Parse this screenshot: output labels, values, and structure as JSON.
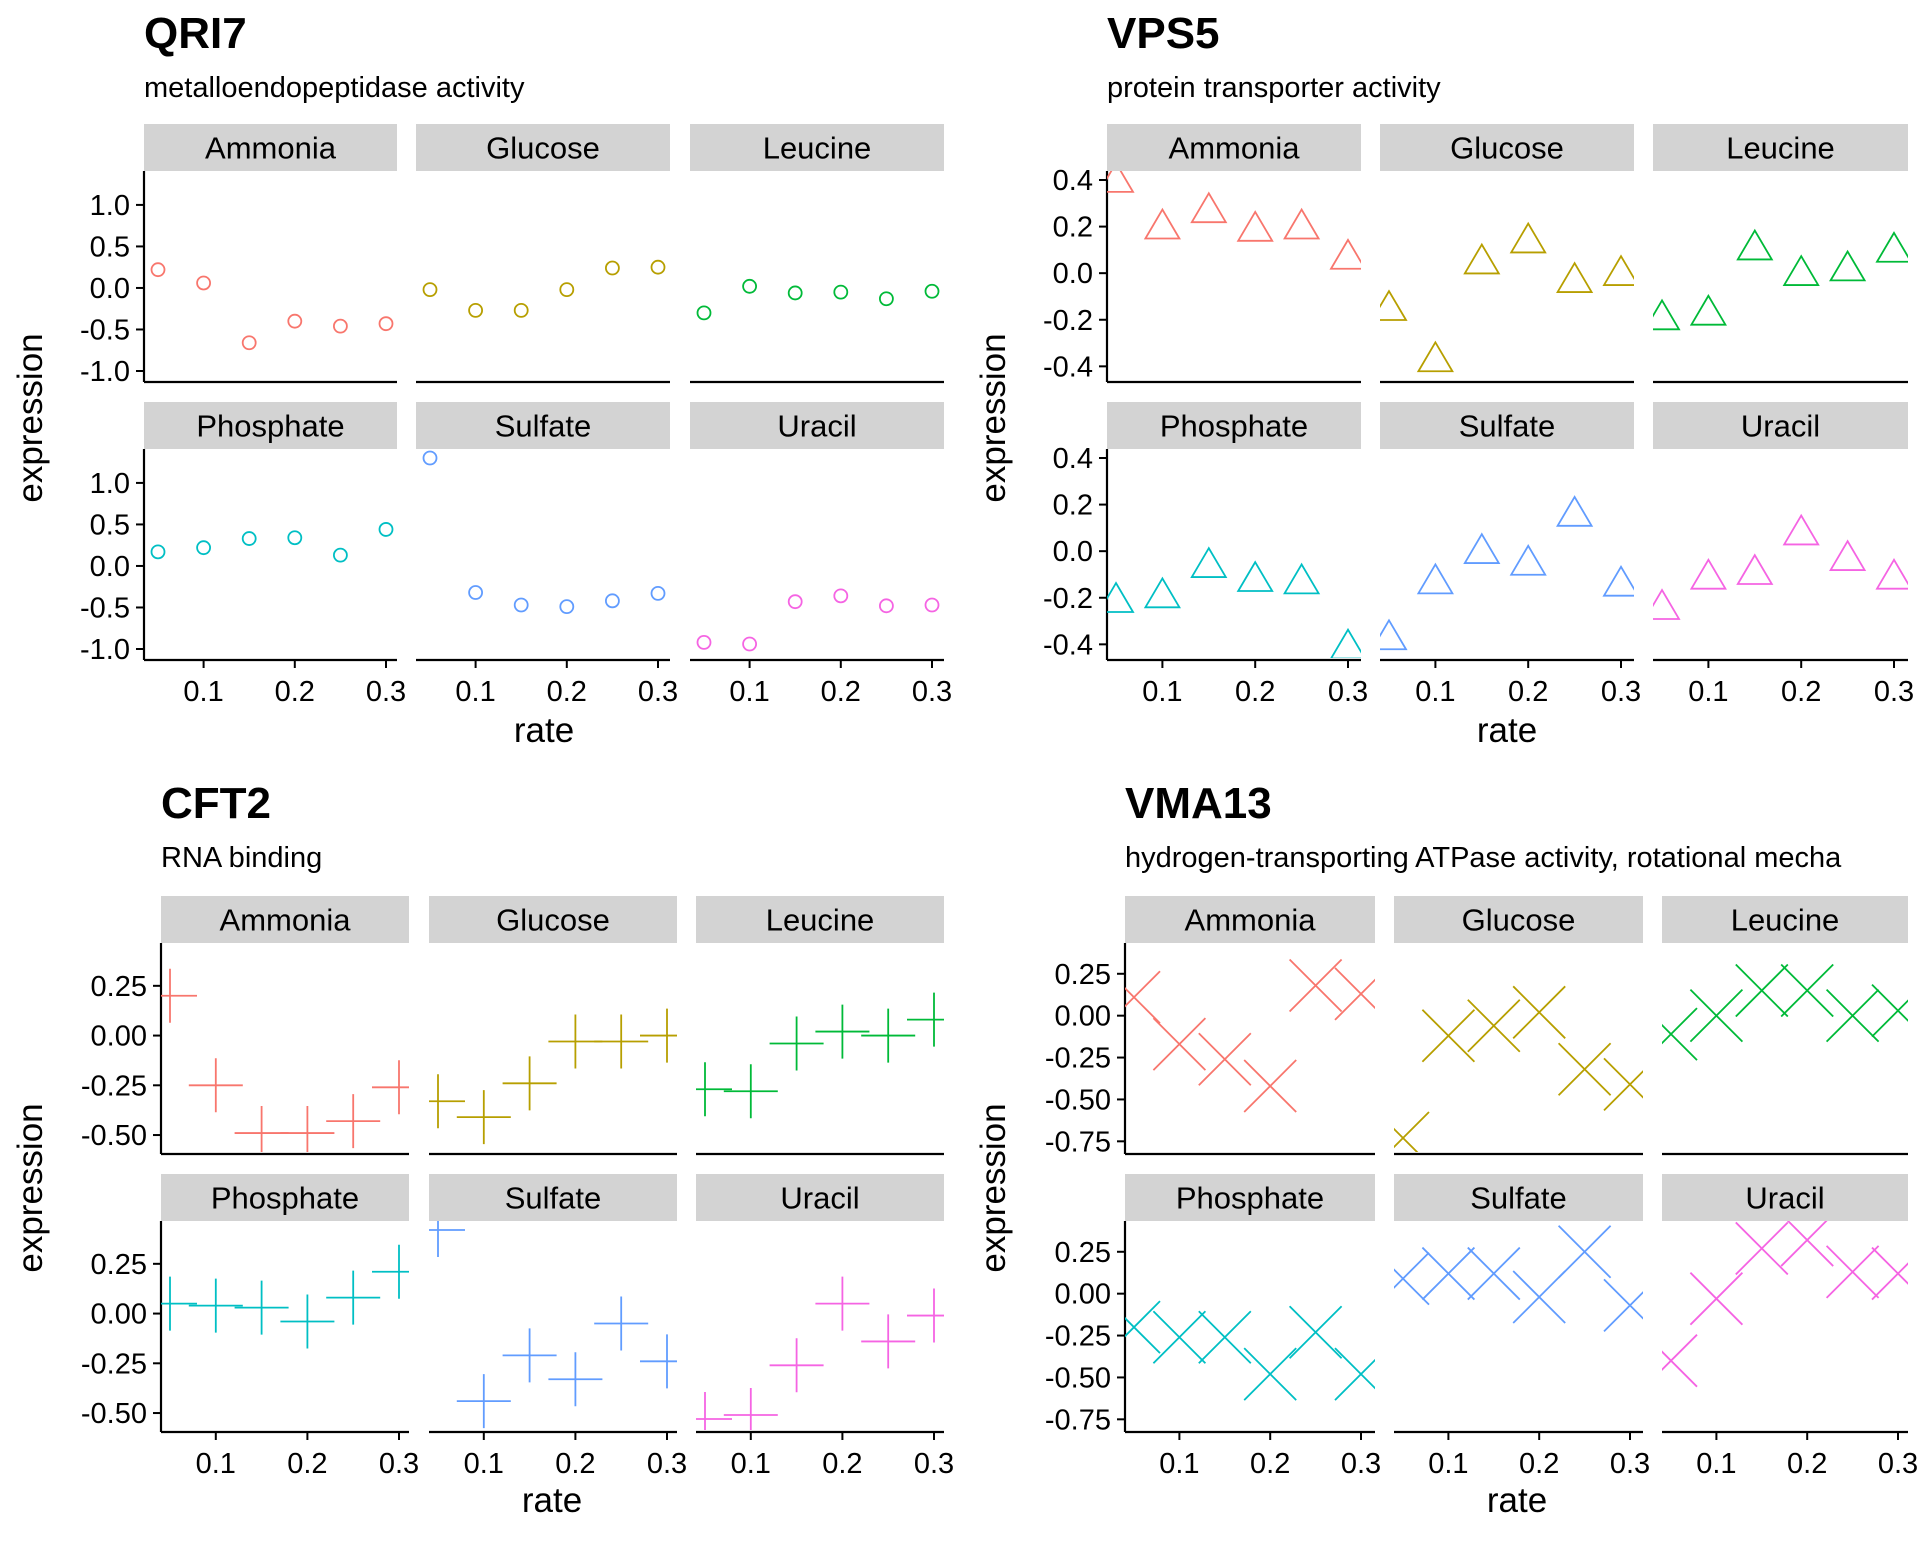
{
  "facets": [
    "Ammonia",
    "Glucose",
    "Leucine",
    "Phosphate",
    "Sulfate",
    "Uracil"
  ],
  "x_ticks": [
    0.1,
    0.2,
    0.3
  ],
  "x_tick_labels": [
    "0.1",
    "0.2",
    "0.3"
  ],
  "rate": [
    0.05,
    0.1,
    0.15,
    0.2,
    0.25,
    0.3
  ],
  "facet_colors": {
    "Ammonia": "#F8766D",
    "Glucose": "#B79F00",
    "Leucine": "#00BA38",
    "Phosphate": "#00BFC4",
    "Sulfate": "#619CFF",
    "Uracil": "#F564E3"
  },
  "strip_fill": "#D3D3D3",
  "chart_data": [
    {
      "type": "scatter",
      "title": "QRI7",
      "subtitle": "metalloendopeptidase activity",
      "xlabel": "rate",
      "ylabel": "expression",
      "marker": "circle",
      "xlim": [
        0.05,
        0.3
      ],
      "ylim": [
        -1.0,
        1.3
      ],
      "y_ticks": [
        "1.0",
        "0.5",
        "0.0",
        "-0.5",
        "-1.0"
      ],
      "series": [
        {
          "name": "Ammonia",
          "values": [
            0.22,
            0.06,
            -0.66,
            -0.4,
            -0.46,
            -0.43
          ]
        },
        {
          "name": "Glucose",
          "values": [
            -0.02,
            -0.27,
            -0.27,
            -0.02,
            0.24,
            0.25
          ]
        },
        {
          "name": "Leucine",
          "values": [
            -0.3,
            0.02,
            -0.06,
            -0.05,
            -0.13,
            -0.04
          ]
        },
        {
          "name": "Phosphate",
          "values": [
            0.17,
            0.22,
            0.33,
            0.34,
            0.13,
            0.44
          ]
        },
        {
          "name": "Sulfate",
          "values": [
            1.3,
            -0.32,
            -0.47,
            -0.49,
            -0.42,
            -0.33
          ]
        },
        {
          "name": "Uracil",
          "values": [
            -0.92,
            -0.94,
            -0.43,
            -0.36,
            -0.48,
            -0.47
          ]
        }
      ]
    },
    {
      "type": "scatter",
      "title": "VPS5",
      "subtitle": "protein transporter activity",
      "xlabel": "rate",
      "ylabel": "expression",
      "marker": "triangle",
      "xlim": [
        0.05,
        0.3
      ],
      "ylim": [
        -0.42,
        0.4
      ],
      "y_ticks": [
        "0.4",
        "0.2",
        "0.0",
        "-0.2",
        "-0.4"
      ],
      "series": [
        {
          "name": "Ammonia",
          "values": [
            0.4,
            0.2,
            0.27,
            0.19,
            0.2,
            0.07
          ]
        },
        {
          "name": "Glucose",
          "values": [
            -0.15,
            -0.37,
            0.05,
            0.14,
            -0.03,
            0.0
          ]
        },
        {
          "name": "Leucine",
          "values": [
            -0.19,
            -0.17,
            0.11,
            0.0,
            0.02,
            0.1
          ]
        },
        {
          "name": "Phosphate",
          "values": [
            -0.21,
            -0.19,
            -0.06,
            -0.12,
            -0.13,
            -0.41
          ]
        },
        {
          "name": "Sulfate",
          "values": [
            -0.37,
            -0.13,
            0.0,
            -0.05,
            0.16,
            -0.14
          ]
        },
        {
          "name": "Uracil",
          "values": [
            -0.24,
            -0.11,
            -0.09,
            0.08,
            -0.03,
            -0.11
          ]
        }
      ]
    },
    {
      "type": "scatter",
      "title": "CFT2",
      "subtitle": "RNA binding",
      "xlabel": "rate",
      "ylabel": "expression",
      "marker": "plus",
      "xlim": [
        0.05,
        0.3
      ],
      "ylim": [
        -0.54,
        0.42
      ],
      "y_ticks": [
        "0.25",
        "0.00",
        "-0.25",
        "-0.50"
      ],
      "series": [
        {
          "name": "Ammonia",
          "values": [
            0.2,
            -0.25,
            -0.49,
            -0.49,
            -0.43,
            -0.26
          ]
        },
        {
          "name": "Glucose",
          "values": [
            -0.33,
            -0.41,
            -0.24,
            -0.03,
            -0.03,
            0.0
          ]
        },
        {
          "name": "Leucine",
          "values": [
            -0.27,
            -0.28,
            -0.04,
            0.02,
            0.0,
            0.08
          ]
        },
        {
          "name": "Phosphate",
          "values": [
            0.05,
            0.04,
            0.03,
            -0.04,
            0.08,
            0.21
          ]
        },
        {
          "name": "Sulfate",
          "values": [
            0.42,
            -0.44,
            -0.21,
            -0.33,
            -0.05,
            -0.24
          ]
        },
        {
          "name": "Uracil",
          "values": [
            -0.53,
            -0.51,
            -0.26,
            0.05,
            -0.14,
            -0.01
          ]
        }
      ]
    },
    {
      "type": "scatter",
      "title": "VMA13",
      "subtitle": "hydrogen-transporting ATPase activity, rotational mecha",
      "xlabel": "rate",
      "ylabel": "expression",
      "marker": "cross",
      "xlim": [
        0.05,
        0.3
      ],
      "ylim": [
        -0.76,
        0.38
      ],
      "y_ticks": [
        "0.25",
        "0.00",
        "-0.25",
        "-0.50",
        "-0.75"
      ],
      "series": [
        {
          "name": "Ammonia",
          "values": [
            0.11,
            -0.17,
            -0.26,
            -0.42,
            0.18,
            0.13
          ]
        },
        {
          "name": "Glucose",
          "values": [
            -0.73,
            -0.12,
            -0.06,
            0.02,
            -0.32,
            -0.41
          ]
        },
        {
          "name": "Leucine",
          "values": [
            -0.11,
            0.0,
            0.15,
            0.15,
            0.0,
            0.03
          ]
        },
        {
          "name": "Phosphate",
          "values": [
            -0.2,
            -0.26,
            -0.26,
            -0.48,
            -0.23,
            -0.48
          ]
        },
        {
          "name": "Sulfate",
          "values": [
            0.09,
            0.12,
            0.12,
            -0.02,
            0.25,
            -0.07
          ]
        },
        {
          "name": "Uracil",
          "values": [
            -0.4,
            -0.03,
            0.27,
            0.32,
            0.13,
            0.12
          ]
        }
      ]
    }
  ]
}
